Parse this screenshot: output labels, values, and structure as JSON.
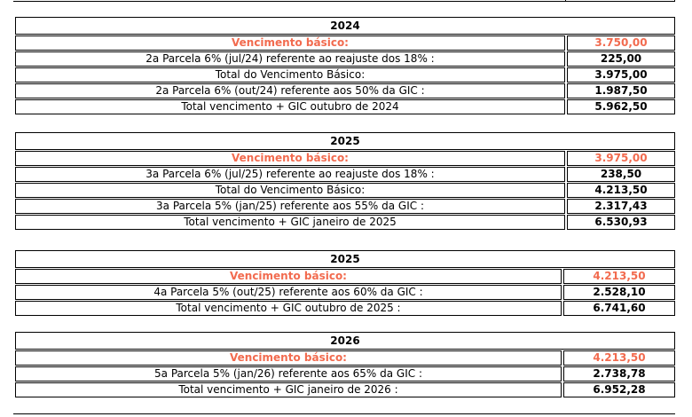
{
  "accent_color": "#f26b4f",
  "tables": [
    {
      "year": "2024",
      "rows": [
        {
          "label": "Vencimento básico:",
          "value": "3.750,00",
          "highlight": true
        },
        {
          "label": "2a Parcela 6% (jul/24) referente ao reajuste dos 18% :",
          "value": "225,00"
        },
        {
          "label": "Total do Vencimento Básico:",
          "value": "3.975,00"
        },
        {
          "label": "2a Parcela 6% (out/24) referente aos 50% da GIC :",
          "value": "1.987,50"
        },
        {
          "label": "Total vencimento + GIC outubro de 2024",
          "value": "5.962,50"
        }
      ]
    },
    {
      "year": "2025",
      "rows": [
        {
          "label": "Vencimento básico:",
          "value": "3.975,00",
          "highlight": true
        },
        {
          "label": "3a Parcela 6% (jul/25) referente ao reajuste dos 18% :",
          "value": "238,50"
        },
        {
          "label": "Total do Vencimento Básico:",
          "value": "4.213,50"
        },
        {
          "label": "3a Parcela 5% (jan/25) referente aos 55% da GIC :",
          "value": "2.317,43"
        },
        {
          "label": "Total vencimento + GIC janeiro de 2025",
          "value": "6.530,93"
        }
      ]
    },
    {
      "year": "2025",
      "rows": [
        {
          "label": "Vencimento básico:",
          "value": "4.213,50",
          "highlight": true
        },
        {
          "label": "4a Parcela 5% (out/25) referente aos 60% da GIC :",
          "value": "2.528,10"
        },
        {
          "label": "Total vencimento + GIC outubro de 2025 :",
          "value": "6.741,60"
        }
      ]
    },
    {
      "year": "2026",
      "rows": [
        {
          "label": "Vencimento básico:",
          "value": "4.213,50",
          "highlight": true
        },
        {
          "label": "5a Parcela 5% (jan/26) referente aos 65% da GIC :",
          "value": "2.738,78"
        },
        {
          "label": "Total vencimento + GIC janeiro de 2026 :",
          "value": "6.952,28"
        }
      ]
    }
  ]
}
